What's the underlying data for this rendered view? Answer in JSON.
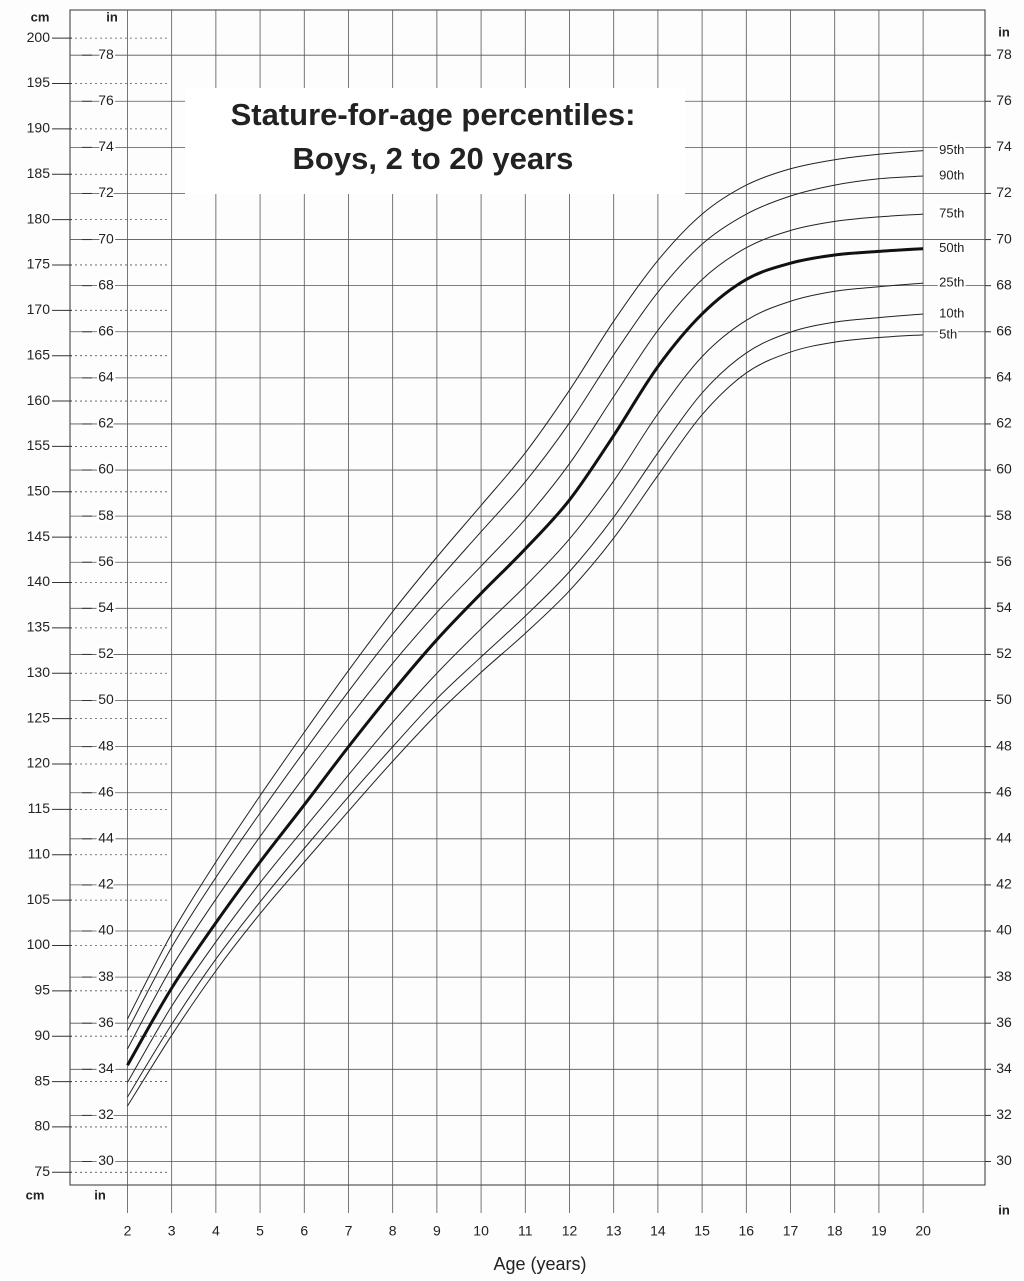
{
  "chart_data": {
    "type": "line",
    "title": "Stature-for-age percentiles:",
    "subtitle": "Boys, 2 to 20 years",
    "x_label": "Age (years)",
    "y_label": "cm",
    "y2_label": "in",
    "x": [
      2,
      3,
      4,
      5,
      6,
      7,
      8,
      9,
      10,
      11,
      12,
      13,
      14,
      15,
      16,
      17,
      18,
      19,
      20
    ],
    "xlim": [
      0.7,
      21.4
    ],
    "xticks": [
      2,
      3,
      4,
      5,
      6,
      7,
      8,
      9,
      10,
      11,
      12,
      13,
      14,
      15,
      16,
      17,
      18,
      19,
      20
    ],
    "ylim": [
      73.6,
      203.1
    ],
    "yticks": [
      75,
      80,
      85,
      90,
      95,
      100,
      105,
      110,
      115,
      120,
      125,
      130,
      135,
      140,
      145,
      150,
      155,
      160,
      165,
      170,
      175,
      180,
      185,
      190,
      195,
      200
    ],
    "y2lim": [
      28.98,
      79.96
    ],
    "y2ticks": [
      30,
      32,
      34,
      36,
      38,
      40,
      42,
      44,
      46,
      48,
      50,
      52,
      54,
      56,
      58,
      60,
      62,
      64,
      66,
      68,
      70,
      72,
      74,
      76,
      78
    ],
    "grid": true,
    "series": [
      {
        "name": "95th",
        "color": "#222222",
        "line_width": 1,
        "values": [
          91.9,
          101.3,
          109.2,
          116.5,
          123.5,
          130.3,
          136.8,
          142.8,
          148.5,
          154.3,
          161.2,
          168.8,
          175.5,
          180.6,
          183.8,
          185.6,
          186.6,
          187.2,
          187.6
        ]
      },
      {
        "name": "90th",
        "color": "#222222",
        "line_width": 1,
        "values": [
          90.6,
          99.8,
          107.5,
          114.6,
          121.4,
          128.0,
          134.3,
          140.1,
          145.6,
          151.1,
          157.6,
          165.1,
          172.0,
          177.3,
          180.6,
          182.6,
          183.8,
          184.5,
          184.8
        ]
      },
      {
        "name": "75th",
        "color": "#222222",
        "line_width": 1,
        "values": [
          88.6,
          97.6,
          105.1,
          112.0,
          118.6,
          125.0,
          131.1,
          136.7,
          141.8,
          147.0,
          153.1,
          160.5,
          167.8,
          173.4,
          176.9,
          178.8,
          179.8,
          180.3,
          180.6
        ]
      },
      {
        "name": "50th",
        "color": "#111111",
        "line_width": 3,
        "values": [
          86.8,
          95.3,
          102.5,
          109.2,
          115.5,
          121.9,
          128.0,
          133.7,
          138.8,
          143.7,
          149.1,
          156.2,
          163.8,
          169.6,
          173.4,
          175.2,
          176.1,
          176.5,
          176.8
        ]
      },
      {
        "name": "25th",
        "color": "#222222",
        "line_width": 1,
        "values": [
          84.9,
          93.3,
          100.4,
          106.9,
          112.9,
          118.8,
          124.6,
          130.0,
          134.9,
          139.6,
          144.8,
          151.2,
          158.6,
          164.9,
          168.9,
          171.0,
          172.1,
          172.6,
          173.0
        ]
      },
      {
        "name": "10th",
        "color": "#222222",
        "line_width": 1,
        "values": [
          83.3,
          91.3,
          98.5,
          104.8,
          110.7,
          116.4,
          121.9,
          127.2,
          131.8,
          136.3,
          141.2,
          147.2,
          154.3,
          160.9,
          165.3,
          167.6,
          168.7,
          169.2,
          169.6
        ]
      },
      {
        "name": "5th",
        "color": "#222222",
        "line_width": 1,
        "values": [
          82.3,
          90.1,
          97.2,
          103.5,
          109.2,
          114.8,
          120.3,
          125.5,
          130.1,
          134.4,
          139.1,
          144.9,
          151.8,
          158.5,
          163.1,
          165.4,
          166.5,
          167.0,
          167.3
        ]
      }
    ]
  }
}
